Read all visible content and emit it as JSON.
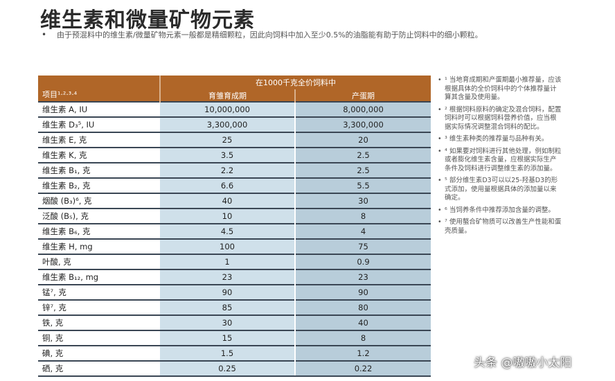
{
  "title": "维生素和微量矿物元素",
  "intro": "由于预混料中的维生素/微量矿物元素一般都是精细颗粒，因此向饲料中加入至少0.5%的油脂能有助于防止饲料中的细小颗粒。",
  "table": {
    "item_header": "项目¹·²·³·⁴",
    "span_header": "在1000千克全价饲料中",
    "col1_header": "育雏育成期",
    "col2_header": "产蛋期",
    "rows": [
      {
        "name": "维生素 A, IU",
        "v1": "10,000,000",
        "v2": "8,000,000"
      },
      {
        "name": "维生素 D₃⁵, IU",
        "v1": "3,300,000",
        "v2": "3,300,000"
      },
      {
        "name": "维生素 E, 克",
        "v1": "25",
        "v2": "20"
      },
      {
        "name": "维生素 K, 克",
        "v1": "3.5",
        "v2": "2.5"
      },
      {
        "name": "维生素 B₁, 克",
        "v1": "2.2",
        "v2": "2.5"
      },
      {
        "name": "维生素 B₂, 克",
        "v1": "6.6",
        "v2": "5.5"
      },
      {
        "name": "烟酸 (B₃)⁶, 克",
        "v1": "40",
        "v2": "30"
      },
      {
        "name": "泛酸 (B₅), 克",
        "v1": "10",
        "v2": "8"
      },
      {
        "name": "维生素 B₆, 克",
        "v1": "4.5",
        "v2": "4"
      },
      {
        "name": "维生素 H, mg",
        "v1": "100",
        "v2": "75"
      },
      {
        "name": "叶酸, 克",
        "v1": "1",
        "v2": "0.9"
      },
      {
        "name": "维生素 B₁₂, mg",
        "v1": "23",
        "v2": "23"
      },
      {
        "name": "锰⁷, 克",
        "v1": "90",
        "v2": "90"
      },
      {
        "name": "锌⁷, 克",
        "v1": "85",
        "v2": "80"
      },
      {
        "name": "铁, 克",
        "v1": "30",
        "v2": "40"
      },
      {
        "name": "铜, 克",
        "v1": "15",
        "v2": "8"
      },
      {
        "name": "碘, 克",
        "v1": "1.5",
        "v2": "1.2"
      },
      {
        "name": "硒, 克",
        "v1": "0.25",
        "v2": "0.22"
      }
    ]
  },
  "notes": [
    "¹ 当地育成期和产蛋期最小推荐量，应该根据具体的全价饲料中的个体推荐量计算其含量及使用量。",
    "² 根据饲料原料的确定及混合饲料，配置饲料时可以根据饲料营养价值，应当根据实际情况调整混合饲料的配比。",
    "³ 维生素种类的推荐量与品种有关。",
    "⁴ 如果要对饲料进行其他处理，例如制粒或者膨化维生素含量，应根据实际生产条件及饲料进行调整维生素的添加量。",
    "⁵ 部分维生素D3可以以25-羟基D3的形式添加，使用量根据具体的添加量以来确定。",
    "⁶ 当饲养条件中推荐添加含量的调整。",
    "⁷ 使用螯合矿物质可以改善生产性能和蛋壳质量。"
  ],
  "watermark": "头条 @嗷嗷小太阳"
}
